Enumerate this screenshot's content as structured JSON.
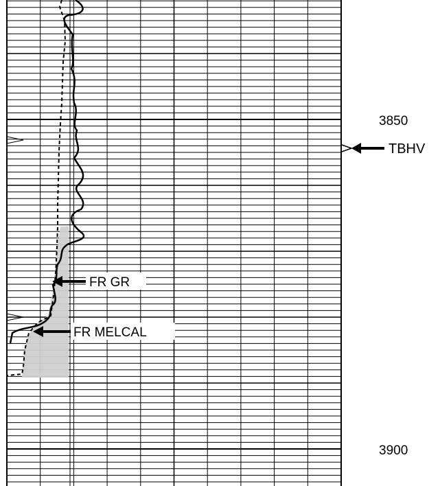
{
  "depth_labels": [
    {
      "value": "3850"
    },
    {
      "value": "3900"
    }
  ],
  "markers": [
    {
      "label": "TBHV"
    }
  ],
  "callouts": [
    {
      "label": "FR GR"
    },
    {
      "label": "FR MELCAL"
    }
  ],
  "colors": {
    "grid": "#000000",
    "background": "#ffffff",
    "shading": "#cfcfcf",
    "curve": "#000000"
  }
}
